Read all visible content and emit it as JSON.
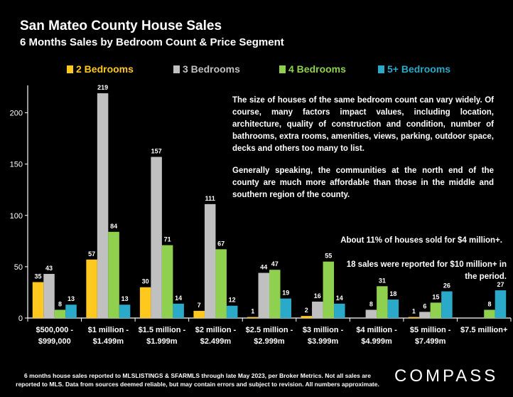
{
  "header": {
    "title": "San Mateo County House Sales",
    "subtitle": "6 Months Sales by Bedroom Count & Price Segment"
  },
  "notes": {
    "paragraph1": "The size of houses of the same bedroom count can vary widely. Of course, many factors impact values, including location, architecture, quality of construction and condition, number of bathrooms, extra rooms, amenities, views, parking, outdoor space, decks and others too many to list.",
    "paragraph2": "Generally speaking, the communities at the north end of the county are much more affordable than those in the middle and southern region of the county.",
    "eleven_percent": "About 11% of houses sold for $4 million+.",
    "ten_million": "18 sales were reported for $10 million+ in the period."
  },
  "footnote": {
    "line1": "6 months house sales reported to MLSLISTINGS & SFARMLS through late May 2023, per Broker Metrics. Not all sales are",
    "line2": "reported to MLS. Data from sources deemed reliable, but may contain errors and subject to revision. All numbers approximate."
  },
  "logo": {
    "text": "COMPASS"
  },
  "chart_data": {
    "type": "bar",
    "categories": [
      [
        "$500,000 -",
        "$999,000"
      ],
      [
        "$1 million -",
        "$1.499m"
      ],
      [
        "$1.5 million -",
        "$1.999m"
      ],
      [
        "$2 million -",
        "$2.499m"
      ],
      [
        "$2.5 million -",
        "$2.999m"
      ],
      [
        "$3 million -",
        "$3.999m"
      ],
      [
        "$4 million -",
        "$4.999m"
      ],
      [
        "$5 million -",
        "$7.499m"
      ],
      [
        "$7.5 million+"
      ]
    ],
    "series": [
      {
        "name": "2 Bedrooms",
        "color": "#FFC81E",
        "values": [
          35,
          57,
          30,
          7,
          1,
          2,
          null,
          1,
          null
        ]
      },
      {
        "name": "3 Bedrooms",
        "color": "#C0C0C0",
        "values": [
          43,
          219,
          157,
          111,
          44,
          16,
          8,
          6,
          null
        ]
      },
      {
        "name": "4 Bedrooms",
        "color": "#8FD14F",
        "values": [
          8,
          84,
          71,
          67,
          47,
          55,
          31,
          15,
          8
        ]
      },
      {
        "name": "5+ Bedrooms",
        "color": "#2AA9C9",
        "values": [
          13,
          13,
          14,
          12,
          19,
          14,
          18,
          26,
          27
        ]
      }
    ],
    "yticks": [
      0,
      50,
      100,
      150,
      200
    ],
    "ylim": [
      0,
      240
    ],
    "legend_position": "top",
    "grid": false
  }
}
